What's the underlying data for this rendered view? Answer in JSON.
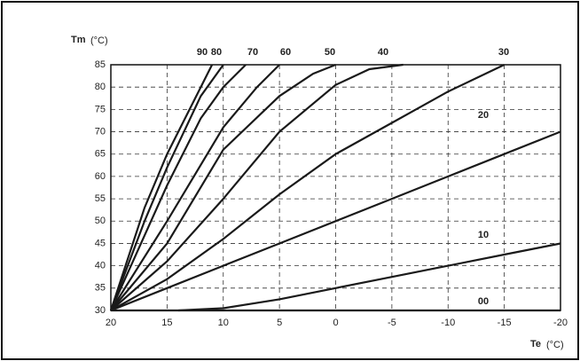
{
  "chart_data": {
    "type": "line",
    "ylabel": "Tm",
    "yunit": "(°C)",
    "xlabel": "Te",
    "xunit": "(°C)",
    "xlim": [
      20,
      -20
    ],
    "xticks": [
      20,
      15,
      10,
      5,
      0,
      -5,
      -10,
      -15,
      -20
    ],
    "ylim": [
      30,
      85
    ],
    "yticks": [
      30,
      35,
      40,
      45,
      50,
      55,
      60,
      65,
      70,
      75,
      80,
      85
    ],
    "grid": true,
    "color": "#1a1a1a",
    "series": [
      {
        "name": "90",
        "x": [
          20,
          17,
          15,
          12,
          11
        ],
        "values": [
          30,
          53,
          65,
          80,
          85
        ]
      },
      {
        "name": "80",
        "x": [
          20,
          17,
          15,
          12,
          10
        ],
        "values": [
          30,
          50,
          62,
          78,
          85
        ]
      },
      {
        "name": "70",
        "x": [
          20,
          15,
          12,
          10,
          8
        ],
        "values": [
          30,
          58,
          73,
          80,
          85
        ]
      },
      {
        "name": "60",
        "x": [
          20,
          15,
          10,
          7,
          5
        ],
        "values": [
          30,
          50,
          71,
          80,
          85
        ]
      },
      {
        "name": "50",
        "x": [
          20,
          15,
          10,
          5,
          2,
          0
        ],
        "values": [
          30,
          45,
          66,
          78,
          83,
          85
        ]
      },
      {
        "name": "40",
        "x": [
          20,
          15,
          10,
          5,
          0,
          -3,
          -6
        ],
        "values": [
          30,
          41,
          55,
          70,
          80.5,
          84,
          85
        ]
      },
      {
        "name": "30",
        "x": [
          20,
          15,
          10,
          5,
          0,
          -5,
          -10,
          -15
        ],
        "values": [
          30,
          37,
          46,
          56,
          65,
          72,
          79,
          85
        ]
      },
      {
        "name": "20",
        "x": [
          20,
          15,
          10,
          5,
          0,
          -5,
          -10,
          -15,
          -20
        ],
        "values": [
          30,
          35,
          40,
          45,
          50,
          55,
          60,
          65,
          70
        ]
      },
      {
        "name": "10",
        "x": [
          14,
          10,
          5,
          0,
          -5,
          -10,
          -15,
          -20
        ],
        "values": [
          30,
          30.5,
          32.5,
          35,
          37.5,
          40,
          42.5,
          45
        ]
      },
      {
        "name": "00",
        "x": [
          20,
          -20
        ],
        "values": [
          30,
          30
        ]
      }
    ]
  }
}
